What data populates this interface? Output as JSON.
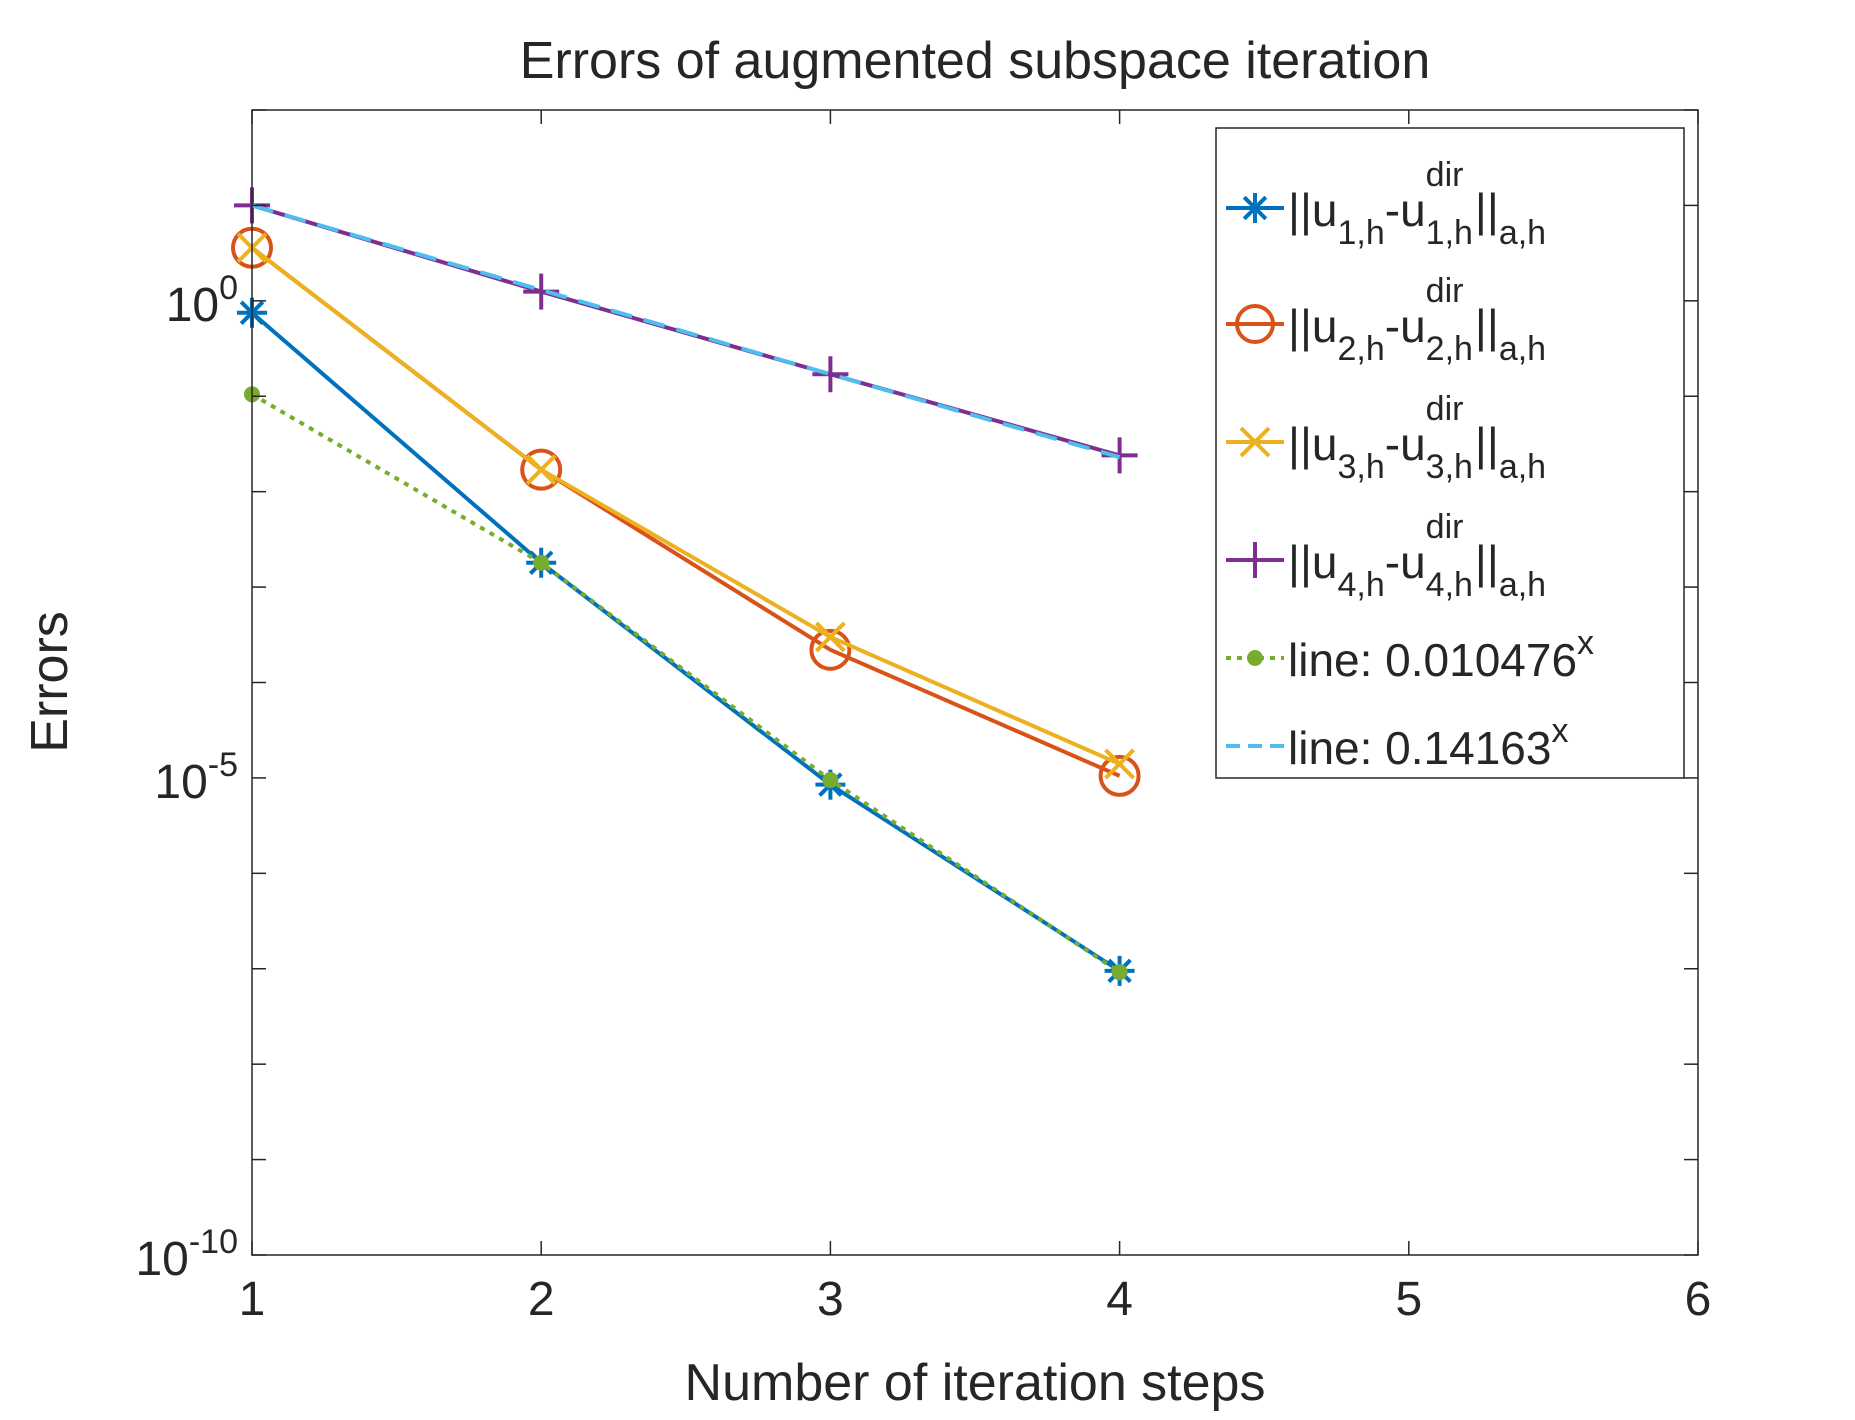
{
  "chart_data": {
    "type": "line",
    "title": "Errors of augmented subspace iteration",
    "xlabel": "Number of iteration steps",
    "ylabel": "Errors",
    "xlim": [
      1,
      6
    ],
    "ylim": [
      1e-10,
      100
    ],
    "yscale": "log",
    "x_ticks": [
      "1",
      "2",
      "3",
      "4",
      "5",
      "6"
    ],
    "y_ticks": [
      {
        "value": 1e-10,
        "base": "10",
        "exp": "-10"
      },
      {
        "value": 1e-05,
        "base": "10",
        "exp": "-5"
      },
      {
        "value": 1,
        "base": "10",
        "exp": "0"
      }
    ],
    "grid": false,
    "legend_position": "top-right",
    "series": [
      {
        "label": {
          "pre": "||u",
          "sub1": "1,h",
          "mid": "-u",
          "sup2": "dir",
          "sub2": "1,h",
          "post": "||",
          "sub3": "a,h"
        },
        "color": "#0072BD",
        "marker": "asterisk",
        "dash": "solid",
        "x": [
          1,
          2,
          3,
          4
        ],
        "y": [
          0.75,
          0.0018,
          8.5e-06,
          9.5e-08
        ]
      },
      {
        "label": {
          "pre": "||u",
          "sub1": "2,h",
          "mid": "-u",
          "sup2": "dir",
          "sub2": "2,h",
          "post": "||",
          "sub3": "a,h"
        },
        "color": "#D95319",
        "marker": "circle",
        "dash": "solid",
        "x": [
          1,
          2,
          3,
          4
        ],
        "y": [
          3.6,
          0.017,
          0.00022,
          1.05e-05
        ]
      },
      {
        "label": {
          "pre": "||u",
          "sub1": "3,h",
          "mid": "-u",
          "sup2": "dir",
          "sub2": "3,h",
          "post": "||",
          "sub3": "a,h"
        },
        "color": "#EDB120",
        "marker": "x",
        "dash": "solid",
        "x": [
          1,
          2,
          3,
          4
        ],
        "y": [
          3.6,
          0.017,
          0.0003,
          1.4e-05
        ]
      },
      {
        "label": {
          "pre": "||u",
          "sub1": "4,h",
          "mid": "-u",
          "sup2": "dir",
          "sub2": "4,h",
          "post": "||",
          "sub3": "a,h"
        },
        "color": "#7E2F8E",
        "marker": "plus",
        "dash": "solid",
        "x": [
          1,
          2,
          3,
          4
        ],
        "y": [
          10,
          1.25,
          0.17,
          0.024
        ]
      },
      {
        "label": {
          "pre": "line: 0.010476",
          "sup2": "x"
        },
        "color": "#77AC30",
        "marker": "dot",
        "dash": "dotted",
        "x": [
          1,
          2,
          3,
          4
        ],
        "y": [
          0.10476,
          0.0018,
          9.5e-06,
          9.2e-08
        ]
      },
      {
        "label": {
          "pre": "line: 0.14163",
          "sup2": "x"
        },
        "color": "#4DBEEE",
        "marker": "none",
        "dash": "dashed",
        "x": [
          1,
          2,
          3,
          4
        ],
        "y": [
          10,
          1.3,
          0.17,
          0.023
        ]
      }
    ]
  }
}
